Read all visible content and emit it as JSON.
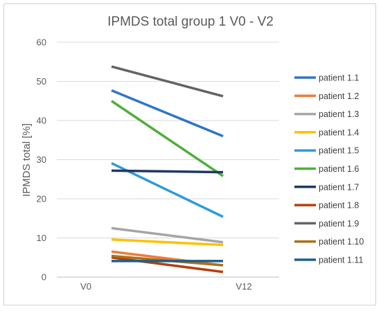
{
  "chart_data": {
    "type": "line",
    "title": "IPMDS total group 1  V0 - V2",
    "xlabel": "",
    "ylabel": "IPMDS total [%]",
    "categories": [
      "V0",
      "V12"
    ],
    "ylim": [
      0,
      60
    ],
    "yticks": [
      0,
      10,
      20,
      30,
      40,
      50,
      60
    ],
    "grid": true,
    "legend_position": "right",
    "series": [
      {
        "name": "patient 1.1",
        "color": "#2E75C9",
        "values": [
          47.7,
          36.0
        ]
      },
      {
        "name": "patient 1.2",
        "color": "#F07B3A",
        "values": [
          6.5,
          3.0
        ]
      },
      {
        "name": "patient 1.3",
        "color": "#A5A5A5",
        "values": [
          12.5,
          8.9
        ]
      },
      {
        "name": "patient 1.4",
        "color": "#FFC000",
        "values": [
          9.6,
          8.2
        ]
      },
      {
        "name": "patient 1.5",
        "color": "#2E9BDA",
        "values": [
          29.1,
          15.4
        ]
      },
      {
        "name": "patient 1.6",
        "color": "#4EAF3A",
        "values": [
          45.0,
          25.8
        ]
      },
      {
        "name": "patient 1.7",
        "color": "#1F3864",
        "values": [
          27.2,
          26.8
        ]
      },
      {
        "name": "patient 1.8",
        "color": "#B5400B",
        "values": [
          5.0,
          1.3
        ]
      },
      {
        "name": "patient 1.9",
        "color": "#636363",
        "values": [
          53.8,
          46.2
        ]
      },
      {
        "name": "patient 1.10",
        "color": "#A8731A",
        "values": [
          5.4,
          3.0
        ]
      },
      {
        "name": "patient 1.11",
        "color": "#1D5F8C",
        "values": [
          4.1,
          4.1
        ]
      }
    ]
  }
}
